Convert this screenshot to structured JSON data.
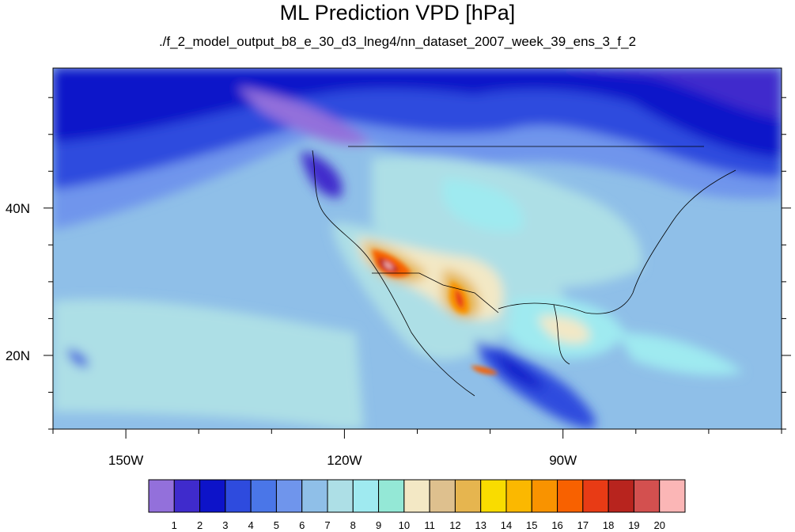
{
  "title": "ML Prediction VPD [hPa]",
  "subtitle": "./f_2_model_output_b8_e_30_d3_lneg4/nn_dataset_2007_week_39_ens_3_f_2",
  "map": {
    "lon_range": [
      -160,
      -60
    ],
    "lat_range": [
      10,
      59
    ],
    "x_ticks": [
      {
        "lon": -150,
        "label": "150W"
      },
      {
        "lon": -120,
        "label": "120W"
      },
      {
        "lon": -90,
        "label": "90W"
      }
    ],
    "y_ticks": [
      {
        "lat": 40,
        "label": "40N"
      },
      {
        "lat": 20,
        "label": "20N"
      }
    ]
  },
  "colorbar": {
    "labels": [
      "1",
      "2",
      "3",
      "4",
      "5",
      "6",
      "7",
      "8",
      "9",
      "10",
      "11",
      "12",
      "13",
      "14",
      "15",
      "16",
      "17",
      "18",
      "19",
      "20"
    ],
    "colors": [
      "#9370db",
      "#3f2bcc",
      "#0d13c9",
      "#2e4bde",
      "#4a76e8",
      "#6f95ec",
      "#8fbfe8",
      "#addfe6",
      "#9feaf0",
      "#94e8d6",
      "#f3e8c5",
      "#dec08e",
      "#e6b54f",
      "#f9dc00",
      "#fbb800",
      "#f99300",
      "#f86100",
      "#e83b15",
      "#b8241e",
      "#d3504f",
      "#fbb6b6"
    ]
  }
}
